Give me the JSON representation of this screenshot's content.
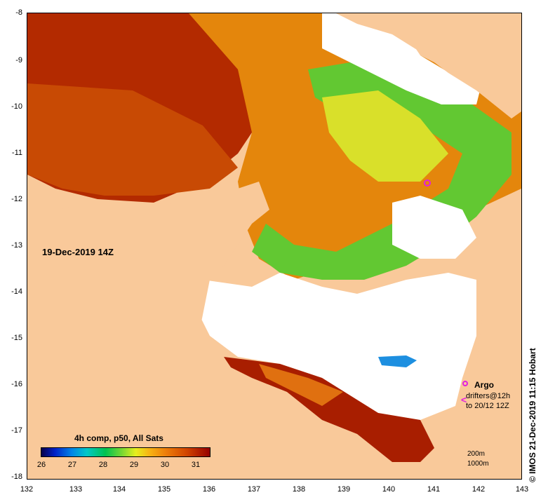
{
  "date_label": "19-Dec-2019 14Z",
  "legend": {
    "title": "4h comp, p50, All Sats",
    "ticks": [
      "26",
      "27",
      "28",
      "29",
      "30",
      "31"
    ]
  },
  "axes": {
    "lon_ticks": [
      "132",
      "133",
      "134",
      "135",
      "136",
      "137",
      "138",
      "139",
      "140",
      "141",
      "142",
      "143"
    ],
    "lat_ticks": [
      "-8",
      "-9",
      "-10",
      "-11",
      "-12",
      "-13",
      "-14",
      "-15",
      "-16",
      "-17",
      "-18"
    ],
    "lon_range": [
      132,
      143
    ],
    "lat_range": [
      -18,
      -8
    ]
  },
  "markers": {
    "argo_label": "Argo",
    "drifters_label": "drifters@12h",
    "drifters_to": "to 20/12 12Z",
    "drifter_glyph": "<"
  },
  "scale": {
    "isobath_200": "200m",
    "isobath_1000": "1000m"
  },
  "credit": "© IMOS 21-Dec-2019 11:15 Hobart",
  "colors": {
    "land": "#f9c99a",
    "no_data": "#ffffff",
    "argo": "#e020e0"
  }
}
